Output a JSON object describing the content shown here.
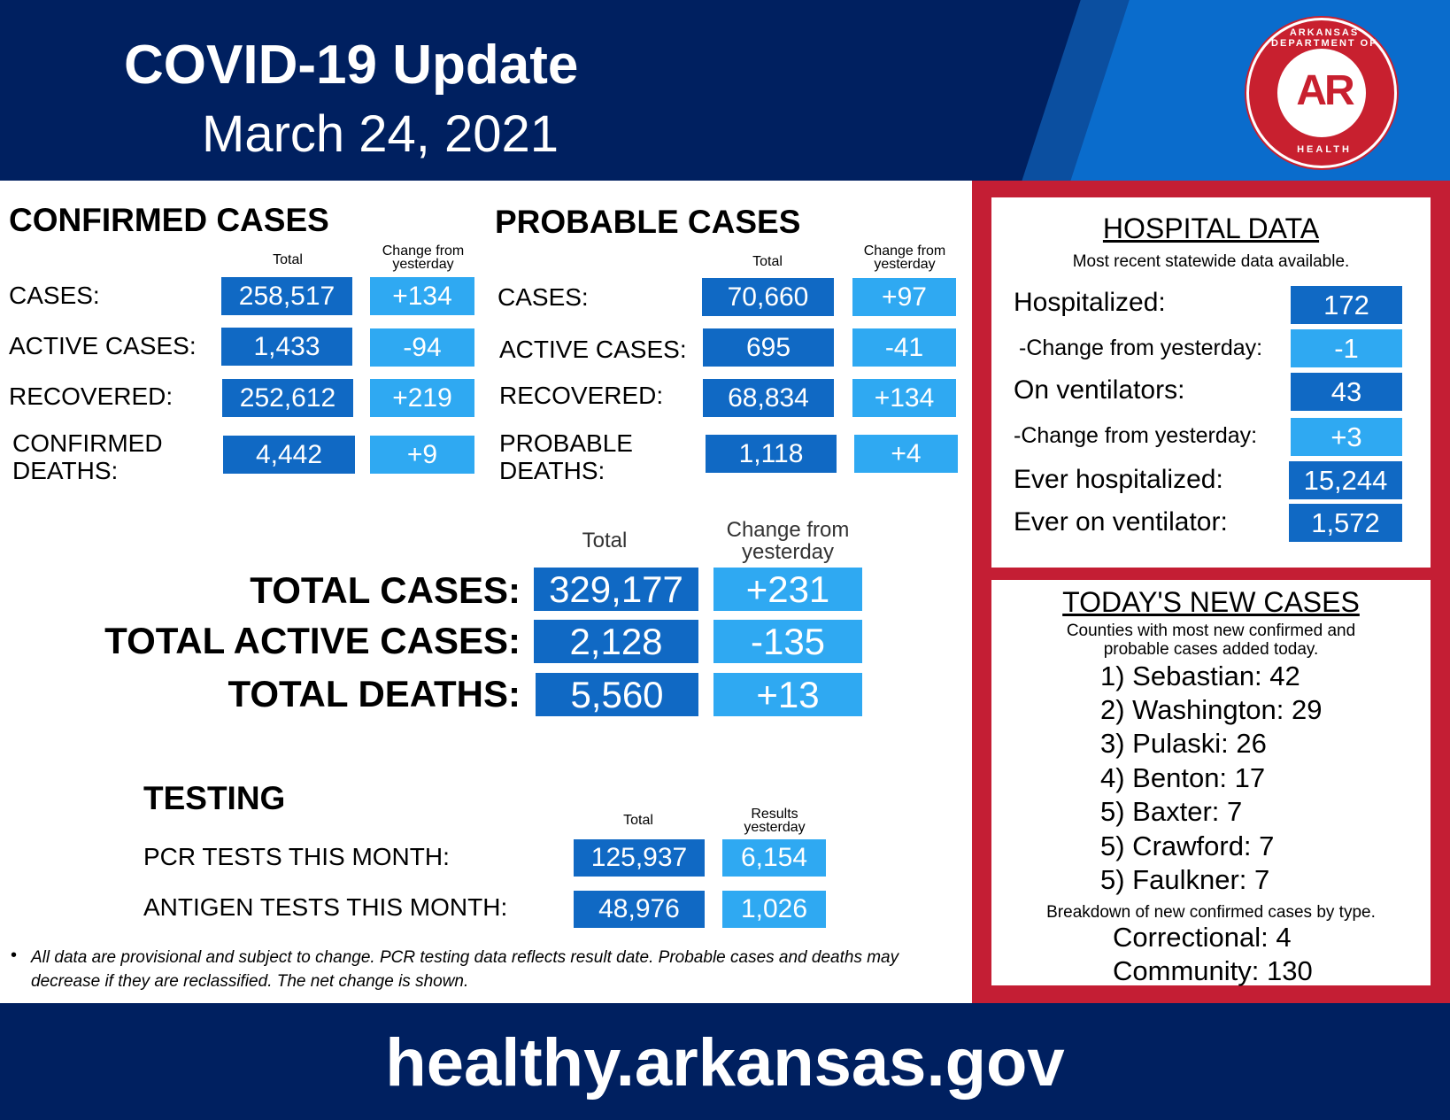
{
  "header": {
    "title": "COVID-19 Update",
    "date": "March 24, 2021",
    "seal": {
      "top_text": "ARKANSAS DEPARTMENT OF",
      "center_text": "AR",
      "bottom_text": "HEALTH"
    }
  },
  "confirmed": {
    "title": "CONFIRMED CASES",
    "col_total": "Total",
    "col_change": "Change from yesterday",
    "rows": [
      {
        "label": "CASES:",
        "total": "258,517",
        "change": "+134"
      },
      {
        "label": "ACTIVE CASES:",
        "total": "1,433",
        "change": "-94"
      },
      {
        "label": "RECOVERED:",
        "total": "252,612",
        "change": "+219"
      },
      {
        "label": "CONFIRMED DEATHS:",
        "total": "4,442",
        "change": "+9"
      }
    ]
  },
  "probable": {
    "title": "PROBABLE CASES",
    "col_total": "Total",
    "col_change": "Change from yesterday",
    "rows": [
      {
        "label": "CASES:",
        "total": "70,660",
        "change": "+97"
      },
      {
        "label": "ACTIVE CASES:",
        "total": "695",
        "change": "-41"
      },
      {
        "label": "RECOVERED:",
        "total": "68,834",
        "change": "+134"
      },
      {
        "label": "PROBABLE DEATHS:",
        "total": "1,118",
        "change": "+4"
      }
    ]
  },
  "totals": {
    "col_total": "Total",
    "col_change": "Change from yesterday",
    "rows": [
      {
        "label": "TOTAL CASES:",
        "total": "329,177",
        "change": "+231"
      },
      {
        "label": "TOTAL ACTIVE CASES:",
        "total": "2,128",
        "change": "-135"
      },
      {
        "label": "TOTAL DEATHS:",
        "total": "5,560",
        "change": "+13"
      }
    ]
  },
  "testing": {
    "title": "TESTING",
    "col_total": "Total",
    "col_results": "Results yesterday",
    "rows": [
      {
        "label": "PCR TESTS THIS MONTH:",
        "total": "125,937",
        "yesterday": "6,154"
      },
      {
        "label": "ANTIGEN TESTS THIS MONTH:",
        "total": "48,976",
        "yesterday": "1,026"
      }
    ]
  },
  "footnote": "All data are provisional and subject to change. PCR testing data reflects result date. Probable cases and deaths may decrease if they are reclassified. The net change is shown.",
  "hospital": {
    "title": "HOSPITAL DATA",
    "subtitle": "Most recent statewide data available.",
    "rows": [
      {
        "label": "Hospitalized:",
        "value": "172"
      },
      {
        "label": "-Change from yesterday:",
        "value": "-1"
      },
      {
        "label": "On ventilators:",
        "value": "43"
      },
      {
        "label": "-Change from yesterday:",
        "value": "+3"
      },
      {
        "label": "Ever hospitalized:",
        "value": "15,244"
      },
      {
        "label": "Ever on ventilator:",
        "value": "1,572"
      }
    ]
  },
  "new_cases": {
    "title": "TODAY'S NEW CASES",
    "subtitle_1": "Counties with most new confirmed and",
    "subtitle_2": "probable cases added today.",
    "counties": [
      "1) Sebastian: 42",
      "2) Washington: 29",
      "3) Pulaski: 26",
      "4) Benton: 17",
      "5) Baxter: 7",
      "5) Crawford: 7",
      "5) Faulkner: 7"
    ],
    "breakdown_title": "Breakdown of new confirmed cases by type.",
    "breakdown": [
      "Correctional: 4",
      "Community: 130"
    ]
  },
  "footer": {
    "url": "healthy.arkansas.gov"
  },
  "colors": {
    "navy": "#002060",
    "dark_blue": "#1069c4",
    "light_blue": "#2fa9f2",
    "red": "#c41e34"
  }
}
